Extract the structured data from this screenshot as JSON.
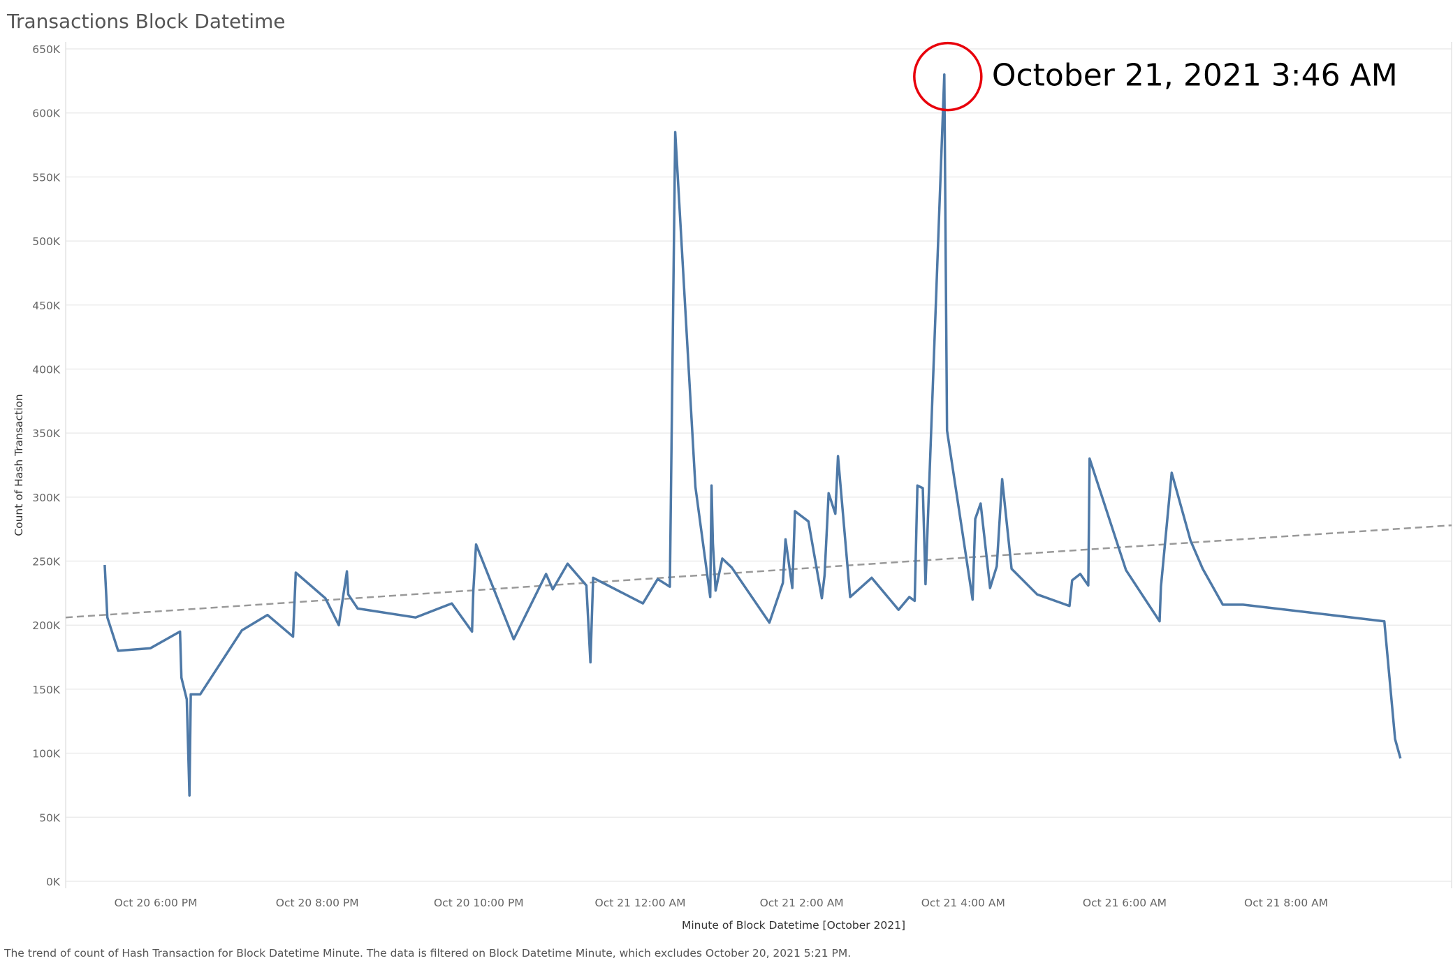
{
  "title": "Transactions Block Datetime",
  "footnote": "The trend of count of Hash Transaction for Block Datetime Minute. The data is filtered on Block Datetime Minute, which excludes October 20, 2021 5:21 PM.",
  "colors": {
    "series": "#4e79a7",
    "trend": "#999999",
    "annotation_circle": "#e8000b",
    "grid": "#ececec"
  },
  "annotation": {
    "text": "October 21, 2021 3:46 AM"
  },
  "chart_data": {
    "type": "line",
    "title": "Transactions Block Datetime",
    "xlabel": "Minute of Block Datetime [October 2021]",
    "ylabel": "Count of Hash Transaction",
    "ylim": [
      0,
      650000
    ],
    "grid": true,
    "x_ticks": [
      "Oct 20 6:00 PM",
      "Oct 20 8:00 PM",
      "Oct 20 10:00 PM",
      "Oct 21 12:00 AM",
      "Oct 21 2:00 AM",
      "Oct 21 4:00 AM",
      "Oct 21 6:00 AM",
      "Oct 21 8:00 AM"
    ],
    "y_ticks": [
      "0K",
      "50K",
      "100K",
      "150K",
      "200K",
      "250K",
      "300K",
      "350K",
      "400K",
      "450K",
      "500K",
      "550K",
      "600K",
      "650K"
    ],
    "x_range": [
      "Oct 20 4:53 PM",
      "Oct 21 10:03 AM"
    ],
    "series": [
      {
        "x": [
          "Oct 20 5:22 PM",
          "Oct 20 5:24 PM",
          "Oct 20 5:32 PM",
          "Oct 20 5:56 PM",
          "Oct 20 6:18 PM",
          "Oct 20 6:19 PM",
          "Oct 20 6:23 PM",
          "Oct 20 6:25 PM",
          "Oct 20 6:26 PM",
          "Oct 20 6:33 PM",
          "Oct 20 7:04 PM",
          "Oct 20 7:23 PM",
          "Oct 20 7:42 PM",
          "Oct 20 7:44 PM",
          "Oct 20 8:06 PM",
          "Oct 20 8:16 PM",
          "Oct 20 8:22 PM",
          "Oct 20 8:23 PM",
          "Oct 20 8:30 PM",
          "Oct 20 9:13 PM",
          "Oct 20 9:40 PM",
          "Oct 20 9:55 PM",
          "Oct 20 9:56 PM",
          "Oct 20 9:58 PM",
          "Oct 20 10:26 PM",
          "Oct 20 10:50 PM",
          "Oct 20 10:55 PM",
          "Oct 20 11:06 PM",
          "Oct 20 11:20 PM",
          "Oct 20 11:23 PM",
          "Oct 20 11:25 PM",
          "Oct 21 12:02 AM",
          "Oct 21 12:13 AM",
          "Oct 21 12:22 AM",
          "Oct 21 12:26 AM",
          "Oct 21 12:41 AM",
          "Oct 21 12:52 AM",
          "Oct 21 12:53 AM",
          "Oct 21 12:54 AM",
          "Oct 21 12:56 AM",
          "Oct 21 1:01 AM",
          "Oct 21 1:08 AM",
          "Oct 21 1:36 AM",
          "Oct 21 1:46 AM",
          "Oct 21 1:48 AM",
          "Oct 21 1:53 AM",
          "Oct 21 1:55 AM",
          "Oct 21 2:05 AM",
          "Oct 21 2:15 AM",
          "Oct 21 2:17 AM",
          "Oct 21 2:20 AM",
          "Oct 21 2:25 AM",
          "Oct 21 2:27 AM",
          "Oct 21 2:36 AM",
          "Oct 21 2:52 AM",
          "Oct 21 3:12 AM",
          "Oct 21 3:20 AM",
          "Oct 21 3:24 AM",
          "Oct 21 3:26 AM",
          "Oct 21 3:30 AM",
          "Oct 21 3:32 AM",
          "Oct 21 3:46 AM",
          "Oct 21 3:48 AM",
          "Oct 21 4:07 AM",
          "Oct 21 4:09 AM",
          "Oct 21 4:13 AM",
          "Oct 21 4:20 AM",
          "Oct 21 4:25 AM",
          "Oct 21 4:29 AM",
          "Oct 21 4:36 AM",
          "Oct 21 4:55 AM",
          "Oct 21 5:19 AM",
          "Oct 21 5:21 AM",
          "Oct 21 5:27 AM",
          "Oct 21 5:33 AM",
          "Oct 21 5:34 AM",
          "Oct 21 6:01 AM",
          "Oct 21 6:26 AM",
          "Oct 21 6:27 AM",
          "Oct 21 6:35 AM",
          "Oct 21 6:49 AM",
          "Oct 21 6:58 AM",
          "Oct 21 7:13 AM",
          "Oct 21 7:28 AM",
          "Oct 21 9:13 AM",
          "Oct 21 9:21 AM",
          "Oct 21 9:25 AM"
        ],
        "values": [
          247000,
          206000,
          180000,
          182000,
          195000,
          159000,
          142000,
          67000,
          146000,
          146000,
          196000,
          208000,
          191000,
          241000,
          221000,
          200000,
          242000,
          224000,
          213000,
          206000,
          217000,
          195000,
          227000,
          263000,
          189000,
          240000,
          228000,
          248000,
          231000,
          171000,
          237000,
          217000,
          236000,
          230000,
          585000,
          308000,
          222000,
          309000,
          264000,
          227000,
          252000,
          245000,
          202000,
          233000,
          267000,
          229000,
          289000,
          281000,
          221000,
          239000,
          303000,
          287000,
          332000,
          222000,
          237000,
          212000,
          222000,
          219000,
          309000,
          307000,
          232000,
          630000,
          352000,
          220000,
          283000,
          295000,
          229000,
          246000,
          314000,
          244000,
          224000,
          215000,
          235000,
          240000,
          231000,
          330000,
          243000,
          203000,
          230000,
          319000,
          266000,
          244000,
          216000,
          216000,
          203000,
          111000,
          96000
        ]
      }
    ],
    "trend_line": {
      "type": "linear",
      "start": [
        "Oct 20 4:53 PM",
        206000
      ],
      "end": [
        "Oct 21 10:03 AM",
        278000
      ]
    }
  }
}
